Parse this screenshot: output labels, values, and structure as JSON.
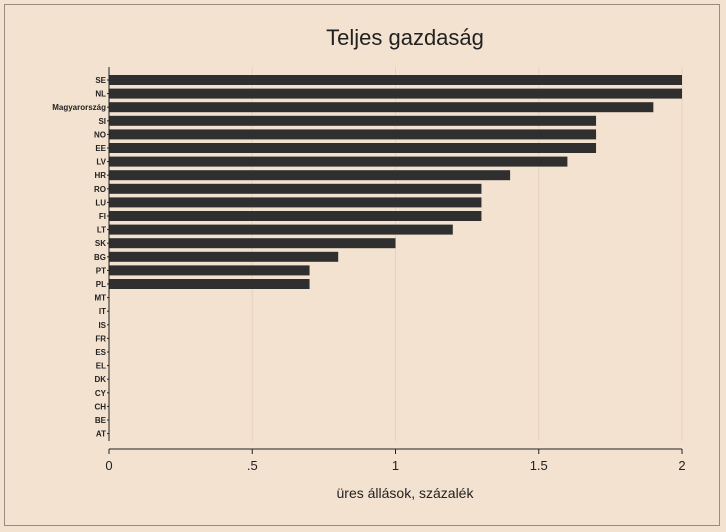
{
  "chart_data": {
    "type": "bar",
    "orientation": "horizontal",
    "title": "Teljes gazdaság",
    "xlabel": "üres állások, százalék",
    "ylabel": "",
    "categories": [
      "SE",
      "NL",
      "Magyarország",
      "SI",
      "NO",
      "EE",
      "LV",
      "HR",
      "RO",
      "LU",
      "FI",
      "LT",
      "SK",
      "BG",
      "PT",
      "PL",
      "MT",
      "IT",
      "IS",
      "FR",
      "ES",
      "EL",
      "DK",
      "CY",
      "CH",
      "BE",
      "AT"
    ],
    "values": [
      2.0,
      2.0,
      1.9,
      1.7,
      1.7,
      1.7,
      1.6,
      1.4,
      1.3,
      1.3,
      1.3,
      1.2,
      1.0,
      0.8,
      0.7,
      0.7,
      0,
      0,
      0,
      0,
      0,
      0,
      0,
      0,
      0,
      0,
      0
    ],
    "xlim": [
      0,
      2
    ],
    "xticks": [
      0,
      0.5,
      1,
      1.5,
      2
    ],
    "xtick_labels": [
      "0",
      ".5",
      "1",
      "1.5",
      "2"
    ],
    "grid": true,
    "bar_color": "#2f2f2f",
    "background": "#f3e2cf",
    "grid_color": "#e6d2bc"
  }
}
